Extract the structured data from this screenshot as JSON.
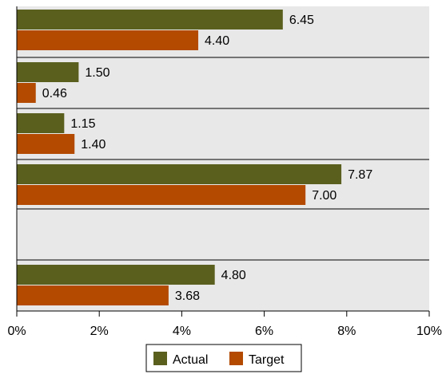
{
  "chart_data": {
    "type": "bar",
    "orientation": "horizontal",
    "categories": [
      "",
      "",
      "",
      "",
      "",
      ""
    ],
    "series": [
      {
        "name": "Actual",
        "values": [
          6.45,
          1.5,
          1.15,
          7.87,
          null,
          4.8
        ],
        "labels": [
          "6.45",
          "1.50",
          "1.15",
          "7.87",
          "",
          "4.80"
        ]
      },
      {
        "name": "Target",
        "values": [
          4.4,
          0.46,
          1.4,
          7.0,
          null,
          3.68
        ],
        "labels": [
          "4.40",
          "0.46",
          "1.40",
          "7.00",
          "",
          "3.68"
        ]
      }
    ],
    "xlim": [
      0,
      10
    ],
    "xticks": [
      "0%",
      "2%",
      "4%",
      "6%",
      "8%",
      "10%"
    ],
    "title": "",
    "xlabel": "",
    "ylabel": "",
    "grid": true,
    "legend": "bottom-center",
    "colors": {
      "Actual": "#5a5f1e",
      "Target": "#b34a00",
      "background": "#e8e8e8",
      "gridline": "#000000"
    }
  }
}
